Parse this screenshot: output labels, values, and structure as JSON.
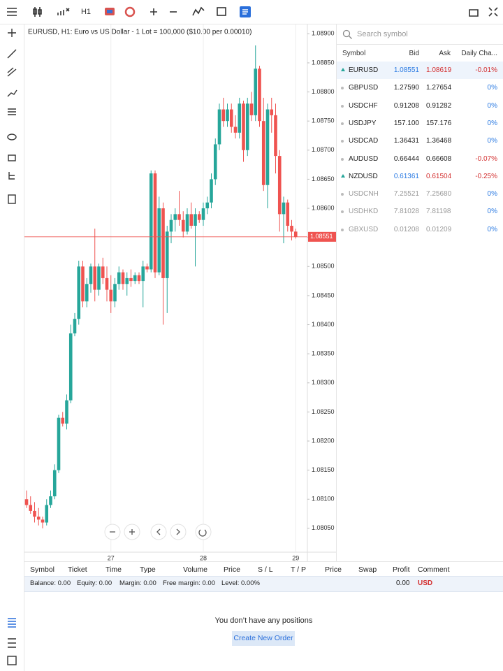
{
  "toolbar": {
    "timeframe": "H1"
  },
  "chart_data": {
    "type": "candlestick",
    "title": "EURUSD, H1: Euro vs US Dollar - 1 Lot = 100,000 ($10.00 per 0.00010)",
    "categories": [
      null,
      null,
      null,
      null,
      null,
      null,
      null,
      null,
      null,
      null,
      null,
      null,
      null,
      null,
      null,
      null,
      null,
      null,
      null,
      null,
      null,
      "27",
      null,
      null,
      null,
      null,
      null,
      null,
      null,
      null,
      null,
      null,
      null,
      null,
      null,
      null,
      null,
      null,
      null,
      null,
      null,
      null,
      null,
      null,
      "28",
      null,
      null,
      null,
      null,
      null,
      null,
      null,
      null,
      null,
      null,
      null,
      null,
      null,
      null,
      null,
      null,
      null,
      null,
      null,
      null,
      null,
      null,
      "29"
    ],
    "open": [
      1.081,
      1.0809,
      1.0808,
      1.0807,
      1.08065,
      1.0806,
      1.0809,
      1.08105,
      1.0815,
      1.0824,
      1.0823,
      1.0827,
      1.08385,
      1.0841,
      1.085,
      1.0844,
      1.0847,
      1.085,
      1.0846,
      1.085,
      1.0848,
      1.0846,
      1.0844,
      1.0847,
      1.0849,
      1.0847,
      1.0848,
      1.08475,
      1.08485,
      1.08475,
      1.085,
      1.08495,
      1.0866,
      1.0849,
      1.086,
      1.0848,
      1.0856,
      1.0858,
      1.0859,
      1.0858,
      1.0856,
      1.0859,
      1.0857,
      1.0859,
      1.0858,
      1.086,
      1.0861,
      1.0865,
      1.0871,
      1.0877,
      1.0875,
      1.0877,
      1.0874,
      1.0873,
      1.0878,
      1.087,
      1.0878,
      1.0876,
      1.0884,
      1.0875,
      1.0864,
      1.0877,
      1.0876,
      1.0869,
      1.0859,
      1.0861,
      1.0857,
      1.0856
    ],
    "high": [
      1.08115,
      1.08105,
      1.08095,
      1.08085,
      1.0807,
      1.081,
      1.08115,
      1.0816,
      1.08245,
      1.0825,
      1.0828,
      1.084,
      1.0842,
      1.0851,
      1.0851,
      1.0848,
      1.08505,
      1.08565,
      1.08505,
      1.08515,
      1.085,
      1.08485,
      1.0848,
      1.085,
      1.08495,
      1.0849,
      1.08495,
      1.0849,
      1.0849,
      1.0851,
      1.08505,
      1.08665,
      1.08665,
      1.0862,
      1.0861,
      1.0857,
      1.0859,
      1.086,
      1.0863,
      1.08595,
      1.086,
      1.0861,
      1.086,
      1.08595,
      1.0861,
      1.0862,
      1.0866,
      1.0872,
      1.0878,
      1.0879,
      1.0878,
      1.0878,
      1.0876,
      1.0879,
      1.08785,
      1.0879,
      1.088,
      1.0888,
      1.08845,
      1.0879,
      1.0878,
      1.0879,
      1.0878,
      1.087,
      1.0862,
      1.08615,
      1.0858,
      1.08565
    ],
    "low": [
      1.08085,
      1.08075,
      1.0806,
      1.08055,
      1.0805,
      1.08055,
      1.08085,
      1.081,
      1.08145,
      1.08225,
      1.0822,
      1.08265,
      1.0838,
      1.084,
      1.0843,
      1.0843,
      1.08455,
      1.0844,
      1.0845,
      1.0847,
      1.0844,
      1.0842,
      1.0843,
      1.0846,
      1.0846,
      1.0845,
      1.08465,
      1.0847,
      1.0847,
      1.0843,
      1.0849,
      1.0849,
      1.0848,
      1.08485,
      1.084,
      1.0842,
      1.0854,
      1.0856,
      1.0857,
      1.0855,
      1.08555,
      1.08565,
      1.085,
      1.08575,
      1.0857,
      1.0859,
      1.086,
      1.0864,
      1.087,
      1.0874,
      1.0874,
      1.0873,
      1.0872,
      1.0872,
      1.0868,
      1.0869,
      1.0875,
      1.0875,
      1.0874,
      1.0863,
      1.086,
      1.0873,
      1.0866,
      1.0856,
      1.0854,
      1.0856,
      1.08545,
      1.08548
    ],
    "close": [
      1.0809,
      1.0808,
      1.0807,
      1.08065,
      1.0806,
      1.0809,
      1.08105,
      1.0815,
      1.0824,
      1.0823,
      1.0827,
      1.08385,
      1.0841,
      1.085,
      1.0844,
      1.0847,
      1.085,
      1.0846,
      1.085,
      1.0848,
      1.0846,
      1.0844,
      1.0847,
      1.0849,
      1.0847,
      1.0848,
      1.08475,
      1.08485,
      1.08475,
      1.085,
      1.08495,
      1.0866,
      1.0849,
      1.086,
      1.0848,
      1.0856,
      1.0858,
      1.0859,
      1.0858,
      1.0856,
      1.0859,
      1.0857,
      1.0859,
      1.0858,
      1.086,
      1.0861,
      1.0865,
      1.0871,
      1.0877,
      1.0875,
      1.0877,
      1.0874,
      1.0873,
      1.0878,
      1.087,
      1.0878,
      1.0876,
      1.0884,
      1.0875,
      1.0864,
      1.0877,
      1.0876,
      1.0869,
      1.0859,
      1.0861,
      1.0857,
      1.0856,
      1.08551
    ],
    "up_color": "#26a69a",
    "down_color": "#ef5350",
    "ylim": [
      1.08009,
      1.08916
    ],
    "yticks": [
      {
        "value": 1.0805,
        "label": "1.08050"
      },
      {
        "value": 1.081,
        "label": "1.08100"
      },
      {
        "value": 1.0815,
        "label": "1.08150"
      },
      {
        "value": 1.082,
        "label": "1.08200"
      },
      {
        "value": 1.0825,
        "label": "1.08250"
      },
      {
        "value": 1.083,
        "label": "1.08300"
      },
      {
        "value": 1.0835,
        "label": "1.08350"
      },
      {
        "value": 1.084,
        "label": "1.08400"
      },
      {
        "value": 1.0845,
        "label": "1.08450"
      },
      {
        "value": 1.085,
        "label": "1.08500"
      },
      {
        "value": 1.0855,
        "label": "1.08550"
      },
      {
        "value": 1.086,
        "label": "1.08600"
      },
      {
        "value": 1.0865,
        "label": "1.08650"
      },
      {
        "value": 1.087,
        "label": "1.08700"
      },
      {
        "value": 1.0875,
        "label": "1.08750"
      },
      {
        "value": 1.088,
        "label": "1.08800"
      },
      {
        "value": 1.0885,
        "label": "1.08850"
      },
      {
        "value": 1.089,
        "label": "1.08900"
      }
    ],
    "current_price": 1.08551
  },
  "watchlist": {
    "search_placeholder": "Search symbol",
    "columns": [
      "Symbol",
      "Bid",
      "Ask",
      "Daily Cha..."
    ],
    "rows": [
      [
        "EURUSD",
        "1.08551",
        "1.08619",
        "-0.01%"
      ],
      [
        "GBPUSD",
        "1.27590",
        "1.27654",
        "0%"
      ],
      [
        "USDCHF",
        "0.91208",
        "0.91282",
        "0%"
      ],
      [
        "USDJPY",
        "157.100",
        "157.176",
        "0%"
      ],
      [
        "USDCAD",
        "1.36431",
        "1.36468",
        "0%"
      ],
      [
        "AUDUSD",
        "0.66444",
        "0.66608",
        "-0.07%"
      ],
      [
        "NZDUSD",
        "0.61361",
        "0.61504",
        "-0.25%"
      ],
      [
        "USDCNH",
        "7.25521",
        "7.25680",
        "0%"
      ],
      [
        "USDHKD",
        "7.81028",
        "7.81198",
        "0%"
      ],
      [
        "GBXUSD",
        "0.01208",
        "0.01209",
        "0%"
      ]
    ]
  },
  "positions": {
    "columns": [
      "Symbol",
      "Ticket",
      "Time",
      "Type",
      "Volume",
      "Price",
      "S / L",
      "T / P",
      "Price",
      "Swap",
      "Profit",
      "Comment"
    ],
    "summary": [
      "Balance: 0.00",
      "Equity: 0.00",
      "Margin: 0.00",
      "Free margin: 0.00",
      "Level: 0.00%"
    ],
    "profit": "0.00",
    "currency": "USD",
    "empty_message": "You don’t have any positions",
    "button": "Create New Order"
  }
}
